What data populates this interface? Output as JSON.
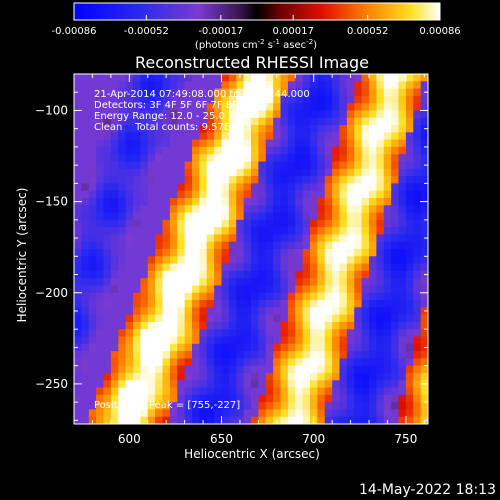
{
  "colorbar": {
    "tick_labels": [
      "-0.00086",
      "-0.00052",
      "-0.00017",
      "0.00017",
      "0.00052",
      "0.00086"
    ],
    "unit_label": "(photons cm",
    "unit_exp1": "-2",
    "unit_mid": " s",
    "unit_exp2": "-1",
    "unit_mid2": " asec",
    "unit_exp3": "-2",
    "unit_end": ")",
    "range": [
      -0.00086,
      0.00086
    ]
  },
  "chart_data": {
    "type": "heatmap",
    "title": "Reconstructed RHESSI Image",
    "xlabel": "Heliocentric X (arcsec)",
    "ylabel": "Heliocentric Y (arcsec)",
    "xlim": [
      570,
      762
    ],
    "ylim": [
      -272,
      -80
    ],
    "x_ticks": [
      600,
      650,
      700,
      750
    ],
    "y_ticks": [
      -100,
      -150,
      -200,
      -250
    ],
    "x_tick_labels": [
      "600",
      "650",
      "700",
      "750"
    ],
    "y_tick_labels": [
      "−100",
      "−150",
      "−200",
      "−250"
    ],
    "annotations": [
      "21-Apr-2014 07:49:08.000 to 07:53:44.000",
      "Detectors: 3F 4F 5F 6F 7F 8F, Att 0",
      "Energy Range: 12.0 - 25.0 keV",
      "Clean    Total counts: 9.57E+03"
    ],
    "peak_label": "Position of Peak = [755,-227]",
    "peak": [
      755,
      -227
    ],
    "bands": [
      {
        "x_at_top": 540,
        "x_at_bottom": 475,
        "level": 0.95
      },
      {
        "x_at_top": 615,
        "x_at_bottom": 548,
        "level": -0.6
      },
      {
        "x_at_top": 672,
        "x_at_bottom": 598,
        "level": 1.0
      },
      {
        "x_at_top": 706,
        "x_at_bottom": 642,
        "level": -0.7
      },
      {
        "x_at_top": 745,
        "x_at_bottom": 688,
        "level": 0.9
      },
      {
        "x_at_top": 778,
        "x_at_bottom": 722,
        "level": -0.7
      },
      {
        "x_at_top": 812,
        "x_at_bottom": 765,
        "level": 0.85
      }
    ]
  },
  "timestamp": "14-May-2022 18:13"
}
